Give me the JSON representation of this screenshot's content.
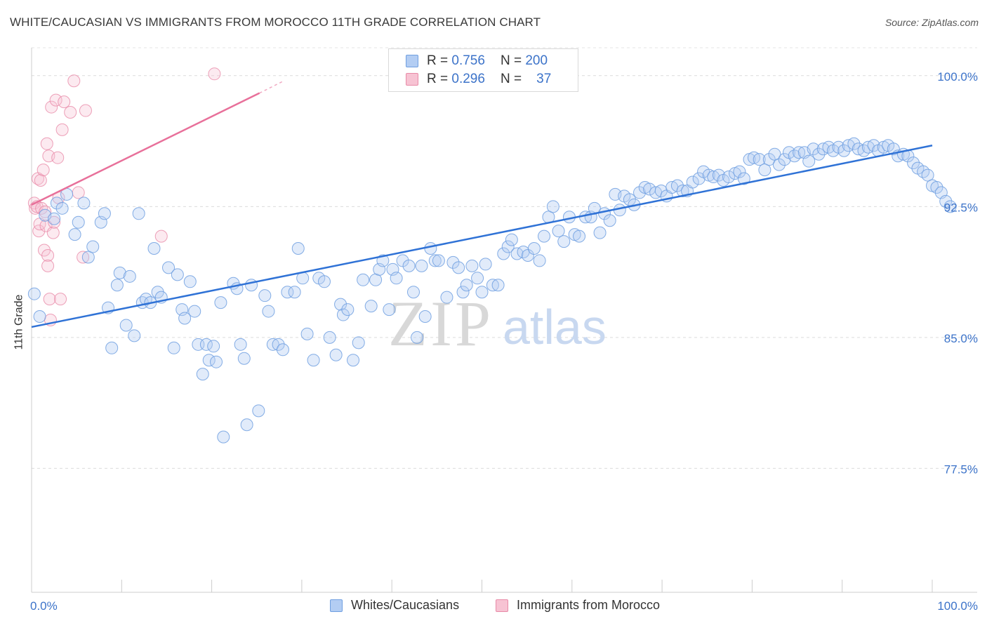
{
  "title": "WHITE/CAUCASIAN VS IMMIGRANTS FROM MOROCCO 11TH GRADE CORRELATION CHART",
  "source": "Source: ZipAtlas.com",
  "watermark": {
    "zip": "ZIP",
    "atlas": "atlas"
  },
  "legend": {
    "blue": {
      "r_label": "R =",
      "r_value": "0.756",
      "n_label": "N =",
      "n_value": "200"
    },
    "pink": {
      "r_label": "R =",
      "r_value": "0.296",
      "n_label": "N =",
      "n_value": "37"
    }
  },
  "bottom_legend": {
    "blue": "Whites/Caucasians",
    "pink": "Immigrants from Morocco"
  },
  "colors": {
    "blue": "#6f9fe0",
    "blue_fill": "#b3cdf3",
    "blue_line": "#2f72d6",
    "pink": "#e88aa7",
    "pink_fill": "#f7c3d3",
    "pink_line": "#e8709a",
    "tick_label": "#3c73c9"
  },
  "chart_data": {
    "type": "scatter",
    "title": "WHITE/CAUCASIAN VS IMMIGRANTS FROM MOROCCO 11TH GRADE CORRELATION CHART",
    "xlabel": "",
    "ylabel": "11th Grade",
    "xlim": [
      0,
      100
    ],
    "ylim": [
      70.4,
      101.6
    ],
    "x_tick_labels": [
      "0.0%",
      "100.0%"
    ],
    "y_ticks": [
      77.5,
      85.0,
      92.5,
      100.0
    ],
    "y_tick_labels": [
      "77.5%",
      "85.0%",
      "92.5%",
      "100.0%"
    ],
    "series": [
      {
        "name": "Whites/Caucasians",
        "r": 0.756,
        "n": 200,
        "trend": [
          [
            0,
            85.6
          ],
          [
            100,
            96.0
          ]
        ],
        "points": [
          [
            0.3,
            87.5
          ],
          [
            0.9,
            86.2
          ],
          [
            1.5,
            92.0
          ],
          [
            2.5,
            91.8
          ],
          [
            2.8,
            92.7
          ],
          [
            3.4,
            92.4
          ],
          [
            3.9,
            93.2
          ],
          [
            4.8,
            90.9
          ],
          [
            5.2,
            91.6
          ],
          [
            5.8,
            92.7
          ],
          [
            6.3,
            89.6
          ],
          [
            6.8,
            90.2
          ],
          [
            7.7,
            91.6
          ],
          [
            8.1,
            92.1
          ],
          [
            8.5,
            86.7
          ],
          [
            8.9,
            84.4
          ],
          [
            9.5,
            88.0
          ],
          [
            9.8,
            88.7
          ],
          [
            10.5,
            85.7
          ],
          [
            10.9,
            88.5
          ],
          [
            11.4,
            85.1
          ],
          [
            11.9,
            92.1
          ],
          [
            12.3,
            87.0
          ],
          [
            12.7,
            87.2
          ],
          [
            13.2,
            87.0
          ],
          [
            13.6,
            90.1
          ],
          [
            14.0,
            87.6
          ],
          [
            14.4,
            87.3
          ],
          [
            15.2,
            89.0
          ],
          [
            15.8,
            84.4
          ],
          [
            16.2,
            88.6
          ],
          [
            16.7,
            86.6
          ],
          [
            17.0,
            86.1
          ],
          [
            17.6,
            88.2
          ],
          [
            18.1,
            86.5
          ],
          [
            18.5,
            84.6
          ],
          [
            19.0,
            82.9
          ],
          [
            19.4,
            84.6
          ],
          [
            19.7,
            83.7
          ],
          [
            20.2,
            84.5
          ],
          [
            20.5,
            83.6
          ],
          [
            21.0,
            87.0
          ],
          [
            21.3,
            79.3
          ],
          [
            22.4,
            88.1
          ],
          [
            22.8,
            87.8
          ],
          [
            23.2,
            84.6
          ],
          [
            23.6,
            83.8
          ],
          [
            23.9,
            80.0
          ],
          [
            24.4,
            88.0
          ],
          [
            25.2,
            80.8
          ],
          [
            25.9,
            87.4
          ],
          [
            26.3,
            86.5
          ],
          [
            26.8,
            84.6
          ],
          [
            27.4,
            84.6
          ],
          [
            27.9,
            84.3
          ],
          [
            28.4,
            87.6
          ],
          [
            29.2,
            87.6
          ],
          [
            29.6,
            90.1
          ],
          [
            30.1,
            88.4
          ],
          [
            30.6,
            85.2
          ],
          [
            31.3,
            83.7
          ],
          [
            31.9,
            88.4
          ],
          [
            32.5,
            88.2
          ],
          [
            33.1,
            85.0
          ],
          [
            33.8,
            84.0
          ],
          [
            34.3,
            86.9
          ],
          [
            34.6,
            86.3
          ],
          [
            35.1,
            86.6
          ],
          [
            35.7,
            83.7
          ],
          [
            36.3,
            84.7
          ],
          [
            36.8,
            88.3
          ],
          [
            37.7,
            86.8
          ],
          [
            38.2,
            88.3
          ],
          [
            38.6,
            88.9
          ],
          [
            39.0,
            89.4
          ],
          [
            39.7,
            86.6
          ],
          [
            40.1,
            88.9
          ],
          [
            40.5,
            88.4
          ],
          [
            41.2,
            89.4
          ],
          [
            41.9,
            89.1
          ],
          [
            42.4,
            87.6
          ],
          [
            42.8,
            85.0
          ],
          [
            43.3,
            89.1
          ],
          [
            43.7,
            86.2
          ],
          [
            44.3,
            90.1
          ],
          [
            44.8,
            89.4
          ],
          [
            45.2,
            89.4
          ],
          [
            46.1,
            87.3
          ],
          [
            46.8,
            89.3
          ],
          [
            47.4,
            89.0
          ],
          [
            47.9,
            87.6
          ],
          [
            48.3,
            88.0
          ],
          [
            48.9,
            89.1
          ],
          [
            49.5,
            88.4
          ],
          [
            50.0,
            87.6
          ],
          [
            50.4,
            89.2
          ],
          [
            51.2,
            88.0
          ],
          [
            51.8,
            88.0
          ],
          [
            52.4,
            89.8
          ],
          [
            52.9,
            90.2
          ],
          [
            53.3,
            90.6
          ],
          [
            53.9,
            89.8
          ],
          [
            54.6,
            89.9
          ],
          [
            55.1,
            89.7
          ],
          [
            55.8,
            90.1
          ],
          [
            56.4,
            89.4
          ],
          [
            56.9,
            90.8
          ],
          [
            57.4,
            91.9
          ],
          [
            57.9,
            92.5
          ],
          [
            58.5,
            91.1
          ],
          [
            59.1,
            90.5
          ],
          [
            59.7,
            91.9
          ],
          [
            60.3,
            90.9
          ],
          [
            60.8,
            90.8
          ],
          [
            61.5,
            91.9
          ],
          [
            62.1,
            91.9
          ],
          [
            62.5,
            92.4
          ],
          [
            63.1,
            91.0
          ],
          [
            63.6,
            92.1
          ],
          [
            64.2,
            91.7
          ],
          [
            64.8,
            93.2
          ],
          [
            65.3,
            92.3
          ],
          [
            65.8,
            93.1
          ],
          [
            66.4,
            92.9
          ],
          [
            66.9,
            92.6
          ],
          [
            67.5,
            93.3
          ],
          [
            68.1,
            93.6
          ],
          [
            68.6,
            93.5
          ],
          [
            69.3,
            93.3
          ],
          [
            69.9,
            93.4
          ],
          [
            70.5,
            93.1
          ],
          [
            71.1,
            93.6
          ],
          [
            71.7,
            93.7
          ],
          [
            72.3,
            93.4
          ],
          [
            72.8,
            93.4
          ],
          [
            73.4,
            93.9
          ],
          [
            74.1,
            94.1
          ],
          [
            74.6,
            94.5
          ],
          [
            75.2,
            94.3
          ],
          [
            75.7,
            94.2
          ],
          [
            76.3,
            94.3
          ],
          [
            76.8,
            94.0
          ],
          [
            77.4,
            94.2
          ],
          [
            78.1,
            94.4
          ],
          [
            78.6,
            94.5
          ],
          [
            79.1,
            94.1
          ],
          [
            79.7,
            95.2
          ],
          [
            80.2,
            95.3
          ],
          [
            80.8,
            95.2
          ],
          [
            81.4,
            94.6
          ],
          [
            81.9,
            95.2
          ],
          [
            82.5,
            95.5
          ],
          [
            83.0,
            94.9
          ],
          [
            83.6,
            95.2
          ],
          [
            84.1,
            95.6
          ],
          [
            84.7,
            95.4
          ],
          [
            85.2,
            95.6
          ],
          [
            85.8,
            95.6
          ],
          [
            86.3,
            95.1
          ],
          [
            86.8,
            95.8
          ],
          [
            87.4,
            95.5
          ],
          [
            87.9,
            95.8
          ],
          [
            88.5,
            95.9
          ],
          [
            89.0,
            95.7
          ],
          [
            89.6,
            95.9
          ],
          [
            90.2,
            95.7
          ],
          [
            90.7,
            96.0
          ],
          [
            91.3,
            96.1
          ],
          [
            91.8,
            95.8
          ],
          [
            92.4,
            95.7
          ],
          [
            92.9,
            95.9
          ],
          [
            93.5,
            96.0
          ],
          [
            94.0,
            95.7
          ],
          [
            94.6,
            95.9
          ],
          [
            95.1,
            96.0
          ],
          [
            95.7,
            95.8
          ],
          [
            96.2,
            95.4
          ],
          [
            96.8,
            95.5
          ],
          [
            97.3,
            95.4
          ],
          [
            97.9,
            95.0
          ],
          [
            98.4,
            94.7
          ],
          [
            99.0,
            94.5
          ],
          [
            99.5,
            94.3
          ],
          [
            100.0,
            93.7
          ],
          [
            100.5,
            93.6
          ],
          [
            101.0,
            93.3
          ],
          [
            101.5,
            92.8
          ],
          [
            102.0,
            92.5
          ]
        ]
      },
      {
        "name": "Immigrants from Morocco",
        "r": 0.296,
        "n": 37,
        "trend": [
          [
            0,
            92.6
          ],
          [
            25.3,
            99.0
          ]
        ],
        "trend_dashed": [
          [
            25.3,
            99.0
          ],
          [
            28.0,
            99.7
          ]
        ],
        "points": [
          [
            0.3,
            92.7
          ],
          [
            0.4,
            92.4
          ],
          [
            0.6,
            92.5
          ],
          [
            0.7,
            94.1
          ],
          [
            0.8,
            91.1
          ],
          [
            0.9,
            91.5
          ],
          [
            1.0,
            94.0
          ],
          [
            1.1,
            92.4
          ],
          [
            1.3,
            94.6
          ],
          [
            1.4,
            90.0
          ],
          [
            1.5,
            92.2
          ],
          [
            1.6,
            91.4
          ],
          [
            1.7,
            96.1
          ],
          [
            1.8,
            89.7
          ],
          [
            1.8,
            89.1
          ],
          [
            1.9,
            95.4
          ],
          [
            2.0,
            87.2
          ],
          [
            2.1,
            86.0
          ],
          [
            2.2,
            98.2
          ],
          [
            2.4,
            91.0
          ],
          [
            2.5,
            91.6
          ],
          [
            2.7,
            98.6
          ],
          [
            2.9,
            95.3
          ],
          [
            3.0,
            93.0
          ],
          [
            3.2,
            87.2
          ],
          [
            3.4,
            96.9
          ],
          [
            3.6,
            98.5
          ],
          [
            4.3,
            97.9
          ],
          [
            4.7,
            99.7
          ],
          [
            5.2,
            93.3
          ],
          [
            5.7,
            89.6
          ],
          [
            6.0,
            98.0
          ],
          [
            14.4,
            90.8
          ],
          [
            20.3,
            100.1
          ]
        ]
      }
    ]
  }
}
